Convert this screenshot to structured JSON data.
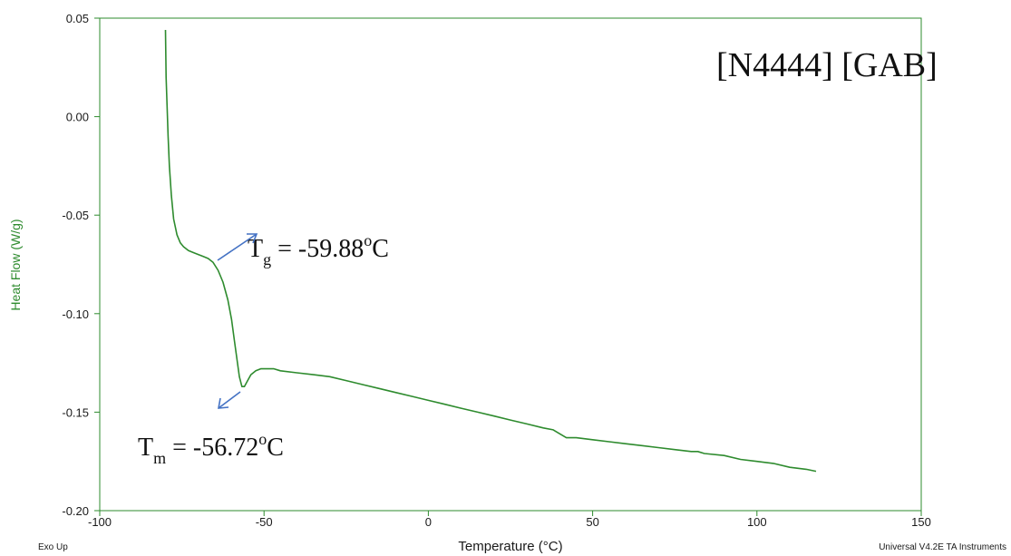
{
  "chart_data": {
    "type": "line",
    "title": "[N4444] [GAB]",
    "xlabel": "Temperature (°C)",
    "ylabel": "Heat Flow (W/g)",
    "xlim": [
      -100,
      150
    ],
    "ylim": [
      -0.2,
      0.05
    ],
    "x_ticks": [
      "-100",
      "-50",
      "0",
      "50",
      "100",
      "150"
    ],
    "y_ticks": [
      "0.05",
      "0.00",
      "-0.05",
      "-0.10",
      "-0.15",
      "-0.20"
    ],
    "grid": false,
    "legend": "none",
    "series": [
      {
        "color": "#2e8b2e",
        "x": [
          -80.0,
          -79.8,
          -79.5,
          -79.2,
          -78.8,
          -78.2,
          -77.5,
          -76.5,
          -75.5,
          -74.5,
          -73.0,
          -71.5,
          -70.0,
          -68.5,
          -67.0,
          -65.5,
          -64.0,
          -62.5,
          -61.0,
          -59.88,
          -59.0,
          -58.0,
          -57.5,
          -56.72,
          -56.0,
          -55.0,
          -54.0,
          -52.5,
          -51.0,
          -49.0,
          -47.0,
          -45.0,
          -40.0,
          -35.0,
          -30.0,
          -25.0,
          -20.0,
          -15.0,
          -10.0,
          -5.0,
          0.0,
          5.0,
          10.0,
          15.0,
          20.0,
          25.0,
          30.0,
          35.0,
          38.0,
          40.0,
          42.0,
          45.0,
          50.0,
          55.0,
          60.0,
          65.0,
          70.0,
          75.0,
          80.0,
          82.0,
          84.0,
          90.0,
          95.0,
          100.0,
          105.0,
          110.0,
          115.0,
          118.0
        ],
        "y": [
          0.044,
          0.02,
          0.005,
          -0.01,
          -0.025,
          -0.04,
          -0.052,
          -0.06,
          -0.064,
          -0.066,
          -0.068,
          -0.069,
          -0.07,
          -0.071,
          -0.072,
          -0.074,
          -0.078,
          -0.084,
          -0.093,
          -0.103,
          -0.114,
          -0.126,
          -0.132,
          -0.137,
          -0.137,
          -0.134,
          -0.131,
          -0.129,
          -0.128,
          -0.128,
          -0.128,
          -0.129,
          -0.13,
          -0.131,
          -0.132,
          -0.134,
          -0.136,
          -0.138,
          -0.14,
          -0.142,
          -0.144,
          -0.146,
          -0.148,
          -0.15,
          -0.152,
          -0.154,
          -0.156,
          -0.158,
          -0.159,
          -0.161,
          -0.163,
          -0.163,
          -0.164,
          -0.165,
          -0.166,
          -0.167,
          -0.168,
          -0.169,
          -0.17,
          -0.17,
          -0.171,
          -0.172,
          -0.174,
          -0.175,
          -0.176,
          -0.178,
          -0.179,
          -0.18
        ]
      }
    ],
    "annotations": [
      {
        "symbol": "T",
        "sub": "g",
        "value": " = -59.88",
        "sup": "o",
        "unit": "C",
        "arrow": "up-right"
      },
      {
        "symbol": "T",
        "sub": "m",
        "value": " = -56.72",
        "sup": "o",
        "unit": "C",
        "arrow": "down-left"
      }
    ],
    "footer_left": "Exo Up",
    "footer_right": "Universal V4.2E TA Instruments"
  }
}
